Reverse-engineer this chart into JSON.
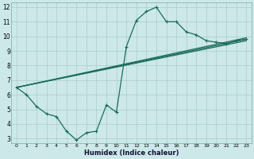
{
  "xlabel": "Humidex (Indice chaleur)",
  "bg_color": "#cce8e8",
  "grid_color": "#aacccc",
  "line_color": "#1a6b5a",
  "xlim": [
    -0.5,
    23.5
  ],
  "ylim": [
    2.7,
    12.3
  ],
  "xticks": [
    0,
    1,
    2,
    3,
    4,
    5,
    6,
    7,
    8,
    9,
    10,
    11,
    12,
    13,
    14,
    15,
    16,
    17,
    18,
    19,
    20,
    21,
    22,
    23
  ],
  "yticks": [
    3,
    4,
    5,
    6,
    7,
    8,
    9,
    10,
    11,
    12
  ],
  "series": [
    {
      "x": [
        0,
        1,
        2,
        3,
        4,
        5,
        6,
        7,
        8,
        9,
        10,
        11,
        12,
        13,
        14,
        15,
        16,
        17,
        18,
        19,
        20,
        21,
        22,
        23
      ],
      "y": [
        6.5,
        6.0,
        5.2,
        4.7,
        4.5,
        3.5,
        2.9,
        3.4,
        3.5,
        5.3,
        4.8,
        9.3,
        11.1,
        11.7,
        12.0,
        11.0,
        11.0,
        10.3,
        10.1,
        9.7,
        9.6,
        9.5,
        9.7,
        9.8
      ],
      "has_markers": true
    },
    {
      "x": [
        0,
        23
      ],
      "y": [
        6.5,
        9.7
      ],
      "has_markers": false
    },
    {
      "x": [
        0,
        23
      ],
      "y": [
        6.5,
        9.8
      ],
      "has_markers": false
    },
    {
      "x": [
        0,
        23
      ],
      "y": [
        6.5,
        9.9
      ],
      "has_markers": false
    }
  ],
  "marker": "+",
  "markersize": 3,
  "linewidth": 0.9
}
